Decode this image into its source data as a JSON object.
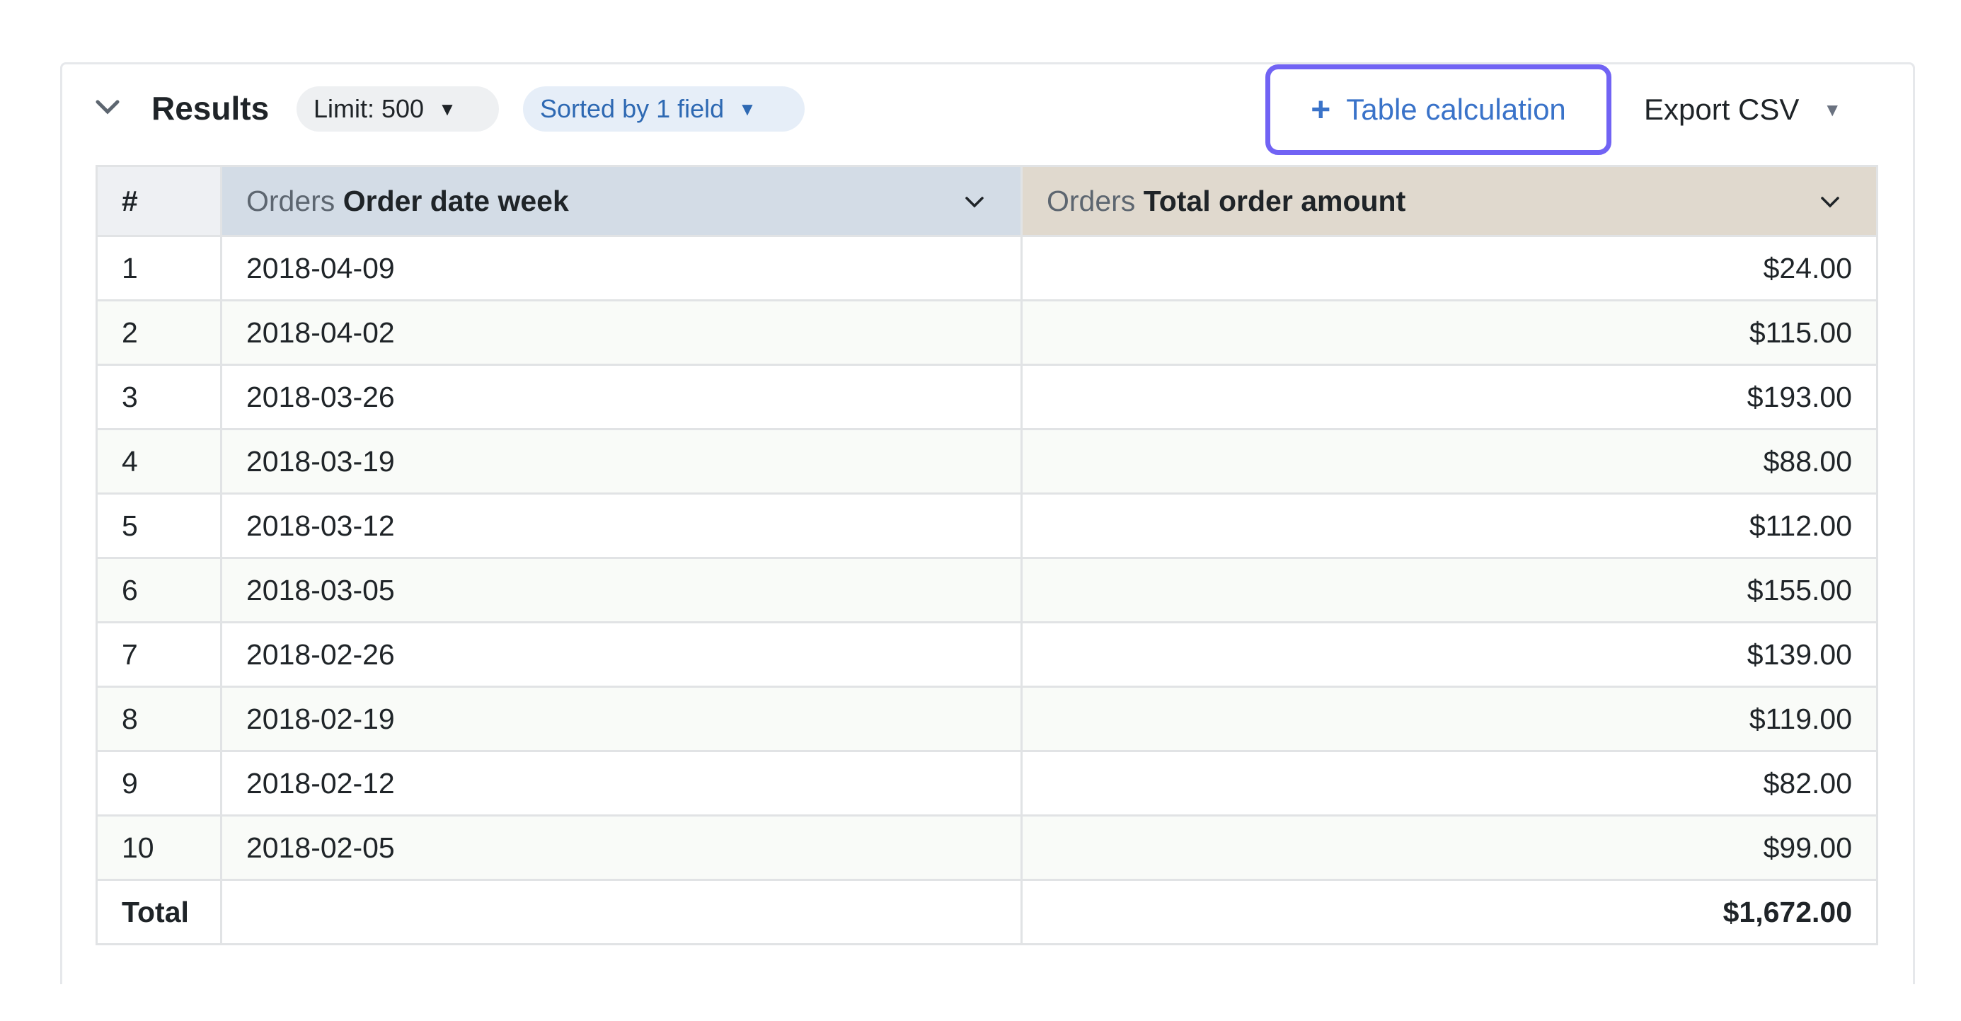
{
  "header": {
    "title": "Results",
    "limit_label": "Limit: 500",
    "sort_label": "Sorted by 1 field",
    "table_calc_label": "Table calculation",
    "export_label": "Export CSV"
  },
  "colors": {
    "highlight_border": "#7163f4",
    "dimension_header": "#d3dce6",
    "measure_header": "#e0d9ce",
    "link_blue": "#3a73c9"
  },
  "table": {
    "columns": [
      {
        "label": "#"
      },
      {
        "group": "Orders",
        "field": "Order date week"
      },
      {
        "group": "Orders",
        "field": "Total order amount"
      }
    ],
    "rows": [
      {
        "n": "1",
        "week": "2018-04-09",
        "amount": "$24.00"
      },
      {
        "n": "2",
        "week": "2018-04-02",
        "amount": "$115.00"
      },
      {
        "n": "3",
        "week": "2018-03-26",
        "amount": "$193.00"
      },
      {
        "n": "4",
        "week": "2018-03-19",
        "amount": "$88.00"
      },
      {
        "n": "5",
        "week": "2018-03-12",
        "amount": "$112.00"
      },
      {
        "n": "6",
        "week": "2018-03-05",
        "amount": "$155.00"
      },
      {
        "n": "7",
        "week": "2018-02-26",
        "amount": "$139.00"
      },
      {
        "n": "8",
        "week": "2018-02-19",
        "amount": "$119.00"
      },
      {
        "n": "9",
        "week": "2018-02-12",
        "amount": "$82.00"
      },
      {
        "n": "10",
        "week": "2018-02-05",
        "amount": "$99.00"
      }
    ],
    "total": {
      "label": "Total",
      "amount": "$1,672.00"
    }
  }
}
